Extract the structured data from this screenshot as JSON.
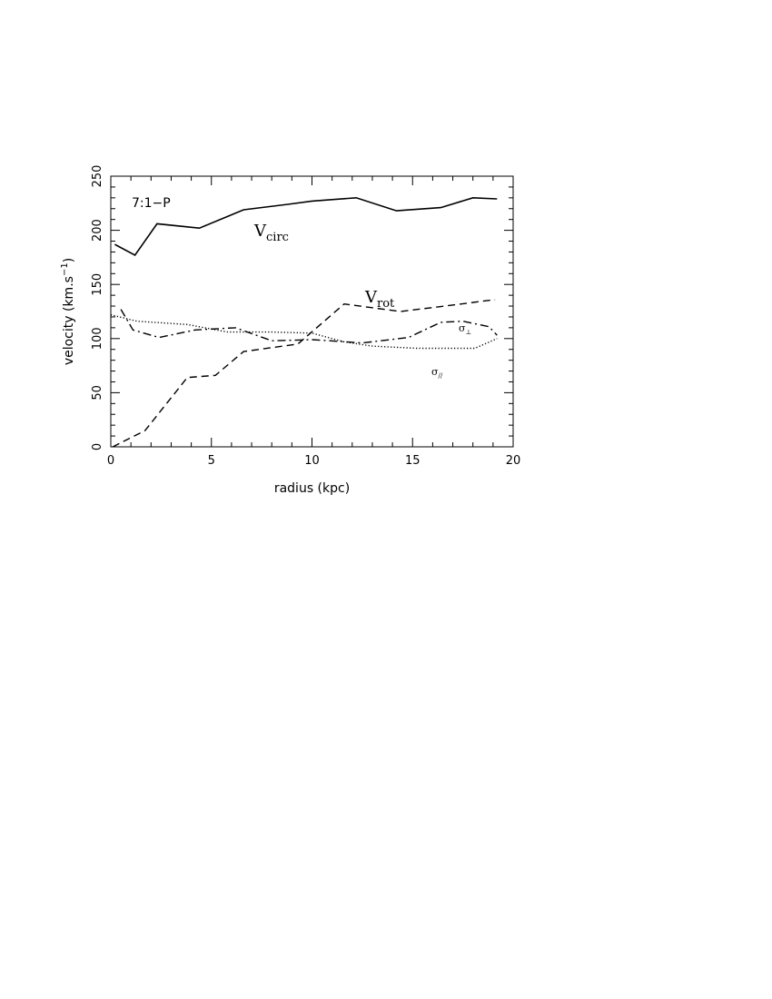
{
  "chart_data": {
    "type": "line",
    "panel_label": "7:1−P",
    "xlabel": "radius (kpc)",
    "ylabel": "velocity (km.s",
    "ylabel_sup": "−1",
    "ylabel_close": ")",
    "xlim": [
      0,
      20
    ],
    "ylim": [
      0,
      250
    ],
    "xticks": [
      0,
      5,
      10,
      15,
      20
    ],
    "yticks": [
      0,
      50,
      100,
      150,
      200,
      250
    ],
    "grid": false,
    "series": [
      {
        "key": "vcirc",
        "label_main": "V",
        "label_sub": "circ",
        "style": "solid",
        "x": [
          0.2,
          1.2,
          2.3,
          4.4,
          6.6,
          8.8,
          10.0,
          12.2,
          14.2,
          16.4,
          18.0,
          19.2
        ],
        "y": [
          187,
          177,
          206,
          202,
          219,
          224,
          227,
          230,
          218,
          221,
          230,
          229
        ]
      },
      {
        "key": "vrot",
        "label_main": "V",
        "label_sub": "rot",
        "style": "dashed",
        "x": [
          0.1,
          1.7,
          3.8,
          5.2,
          6.6,
          9.3,
          11.6,
          14.4,
          16.6,
          19.1
        ],
        "y": [
          0,
          15,
          64,
          66,
          88,
          95,
          132,
          125,
          130,
          136
        ]
      },
      {
        "key": "sigma_perp",
        "label_main": "σ",
        "label_sub": "⊥",
        "style": "dashdot",
        "x": [
          0.5,
          1.1,
          2.4,
          4.2,
          6.2,
          8.0,
          10.0,
          12.5,
          14.8,
          16.4,
          17.5,
          18.8,
          19.2
        ],
        "y": [
          127,
          108,
          101,
          108,
          110,
          98,
          99,
          96,
          101,
          115,
          116,
          111,
          103
        ]
      },
      {
        "key": "sigma_par",
        "label_main": "σ",
        "label_sub": "//",
        "style": "dotted",
        "x": [
          0.0,
          1.3,
          3.8,
          5.8,
          8.0,
          10.0,
          11.6,
          13.0,
          15.2,
          17.0,
          18.1,
          19.2
        ],
        "y": [
          122,
          116,
          113,
          106,
          106,
          105,
          97,
          93,
          91,
          91,
          91,
          100
        ]
      }
    ]
  }
}
